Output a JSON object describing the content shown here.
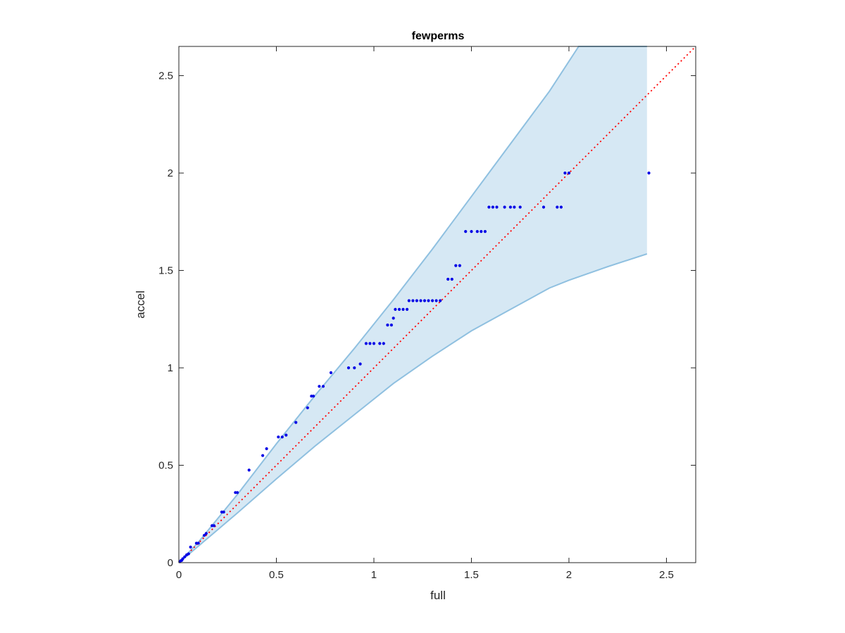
{
  "chart_data": {
    "type": "scatter",
    "title": "fewperms",
    "xlabel": "full",
    "ylabel": "accel",
    "xlim": [
      0,
      2.65
    ],
    "ylim": [
      0,
      2.65
    ],
    "xticks": [
      0,
      0.5,
      1,
      1.5,
      2,
      2.5
    ],
    "yticks": [
      0,
      0.5,
      1,
      1.5,
      2,
      2.5
    ],
    "xtick_labels": [
      "0",
      "0.5",
      "1",
      "1.5",
      "2",
      "2.5"
    ],
    "ytick_labels": [
      "0",
      "0.5",
      "1",
      "1.5",
      "2",
      "2.5"
    ],
    "grid": false,
    "colors": {
      "points": "#0000e6",
      "band_fill": "#d6e8f4",
      "band_edge": "#8fc0e0",
      "reference_line": "#ff0000",
      "axes": "#262626"
    },
    "band": {
      "upper": [
        [
          0,
          0
        ],
        [
          0.1,
          0.105
        ],
        [
          0.3,
          0.35
        ],
        [
          0.5,
          0.61
        ],
        [
          0.7,
          0.86
        ],
        [
          0.9,
          1.1
        ],
        [
          1.1,
          1.35
        ],
        [
          1.3,
          1.61
        ],
        [
          1.5,
          1.88
        ],
        [
          1.7,
          2.15
        ],
        [
          1.9,
          2.42
        ],
        [
          2.05,
          2.65
        ],
        [
          2.4,
          2.65
        ]
      ],
      "lower": [
        [
          0,
          0
        ],
        [
          0.1,
          0.085
        ],
        [
          0.3,
          0.255
        ],
        [
          0.5,
          0.43
        ],
        [
          0.7,
          0.6
        ],
        [
          0.9,
          0.76
        ],
        [
          1.1,
          0.92
        ],
        [
          1.3,
          1.06
        ],
        [
          1.5,
          1.19
        ],
        [
          1.7,
          1.3
        ],
        [
          1.9,
          1.41
        ],
        [
          2.0,
          1.45
        ],
        [
          2.2,
          1.52
        ],
        [
          2.4,
          1.585
        ]
      ]
    },
    "reference_line": {
      "x": [
        0,
        2.65
      ],
      "y": [
        0,
        2.65
      ],
      "style": "dotted"
    },
    "points": [
      [
        0.005,
        0.005
      ],
      [
        0.01,
        0.01
      ],
      [
        0.015,
        0.012
      ],
      [
        0.02,
        0.02
      ],
      [
        0.03,
        0.03
      ],
      [
        0.04,
        0.04
      ],
      [
        0.05,
        0.045
      ],
      [
        0.06,
        0.08
      ],
      [
        0.09,
        0.1
      ],
      [
        0.1,
        0.1
      ],
      [
        0.13,
        0.14
      ],
      [
        0.14,
        0.15
      ],
      [
        0.17,
        0.19
      ],
      [
        0.18,
        0.19
      ],
      [
        0.22,
        0.26
      ],
      [
        0.23,
        0.26
      ],
      [
        0.29,
        0.36
      ],
      [
        0.3,
        0.36
      ],
      [
        0.36,
        0.475
      ],
      [
        0.43,
        0.55
      ],
      [
        0.45,
        0.585
      ],
      [
        0.51,
        0.645
      ],
      [
        0.53,
        0.645
      ],
      [
        0.55,
        0.655
      ],
      [
        0.6,
        0.72
      ],
      [
        0.66,
        0.795
      ],
      [
        0.68,
        0.855
      ],
      [
        0.69,
        0.855
      ],
      [
        0.72,
        0.905
      ],
      [
        0.74,
        0.905
      ],
      [
        0.78,
        0.975
      ],
      [
        0.87,
        1.0
      ],
      [
        0.9,
        1.0
      ],
      [
        0.93,
        1.02
      ],
      [
        0.96,
        1.125
      ],
      [
        0.98,
        1.125
      ],
      [
        1.0,
        1.125
      ],
      [
        1.03,
        1.125
      ],
      [
        1.05,
        1.125
      ],
      [
        1.07,
        1.22
      ],
      [
        1.09,
        1.22
      ],
      [
        1.1,
        1.255
      ],
      [
        1.11,
        1.3
      ],
      [
        1.13,
        1.3
      ],
      [
        1.15,
        1.3
      ],
      [
        1.17,
        1.3
      ],
      [
        1.18,
        1.345
      ],
      [
        1.2,
        1.345
      ],
      [
        1.22,
        1.345
      ],
      [
        1.24,
        1.345
      ],
      [
        1.26,
        1.345
      ],
      [
        1.28,
        1.345
      ],
      [
        1.3,
        1.345
      ],
      [
        1.32,
        1.345
      ],
      [
        1.34,
        1.345
      ],
      [
        1.38,
        1.455
      ],
      [
        1.4,
        1.455
      ],
      [
        1.42,
        1.525
      ],
      [
        1.44,
        1.525
      ],
      [
        1.47,
        1.7
      ],
      [
        1.5,
        1.7
      ],
      [
        1.53,
        1.7
      ],
      [
        1.55,
        1.7
      ],
      [
        1.57,
        1.7
      ],
      [
        1.59,
        1.825
      ],
      [
        1.61,
        1.825
      ],
      [
        1.63,
        1.825
      ],
      [
        1.67,
        1.825
      ],
      [
        1.7,
        1.825
      ],
      [
        1.72,
        1.825
      ],
      [
        1.75,
        1.825
      ],
      [
        1.87,
        1.825
      ],
      [
        1.94,
        1.825
      ],
      [
        1.96,
        1.825
      ],
      [
        1.98,
        2.0
      ],
      [
        2.0,
        2.0
      ],
      [
        2.41,
        2.0
      ]
    ]
  }
}
